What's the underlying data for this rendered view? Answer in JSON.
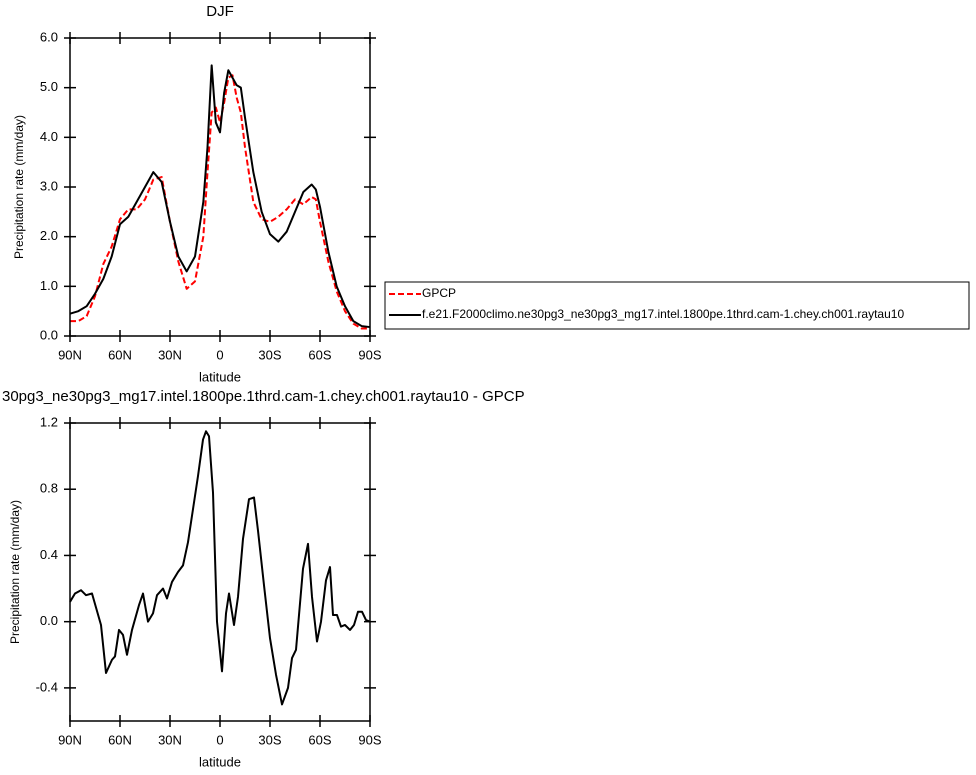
{
  "chart_data": [
    {
      "type": "line",
      "title": "DJF",
      "x_label": "latitude",
      "y_label": "Precipitation rate (mm/day)",
      "x": [
        90,
        85,
        80,
        75,
        70,
        65,
        60,
        55,
        50,
        45,
        40,
        35,
        30,
        25,
        20,
        15,
        10,
        7.5,
        5,
        2.5,
        0,
        -2.5,
        -5,
        -7.5,
        -10,
        -12.5,
        -15,
        -20,
        -25,
        -30,
        -35,
        -40,
        -45,
        -50,
        -55,
        -57.5,
        -60,
        -65,
        -70,
        -75,
        -80,
        -85,
        -90
      ],
      "series": [
        {
          "name": "GPCP",
          "color": "#ff0000",
          "dashed": true,
          "values": [
            0.3,
            0.3,
            0.4,
            0.8,
            1.45,
            1.8,
            2.35,
            2.55,
            2.55,
            2.75,
            3.15,
            3.2,
            2.3,
            1.5,
            0.95,
            1.1,
            2.0,
            3.3,
            4.5,
            4.6,
            4.3,
            4.7,
            5.2,
            5.25,
            4.8,
            4.5,
            3.8,
            2.7,
            2.35,
            2.3,
            2.4,
            2.55,
            2.75,
            2.65,
            2.8,
            2.75,
            2.3,
            1.5,
            0.9,
            0.5,
            0.25,
            0.15,
            0.15
          ]
        },
        {
          "name": "f.e21.F2000climo.ne30pg3_ne30pg3_mg17.intel.1800pe.1thrd.cam-1.chey.ch001.raytau10",
          "color": "#000000",
          "dashed": false,
          "values": [
            0.45,
            0.5,
            0.6,
            0.85,
            1.15,
            1.6,
            2.25,
            2.4,
            2.7,
            3.0,
            3.3,
            3.1,
            2.3,
            1.6,
            1.3,
            1.6,
            2.7,
            3.8,
            5.45,
            4.3,
            4.1,
            4.9,
            5.35,
            5.2,
            5.05,
            5.0,
            4.4,
            3.3,
            2.5,
            2.05,
            1.9,
            2.1,
            2.5,
            2.9,
            3.05,
            2.95,
            2.6,
            1.7,
            1.0,
            0.6,
            0.3,
            0.2,
            0.18
          ]
        }
      ],
      "xlim": [
        90,
        -90
      ],
      "xticks": [
        {
          "value": 90,
          "label": "90N"
        },
        {
          "value": 60,
          "label": "60N"
        },
        {
          "value": 30,
          "label": "30N"
        },
        0,
        {
          "value": -30,
          "label": "30S"
        },
        {
          "value": -60,
          "label": "60S"
        },
        {
          "value": -90,
          "label": "90S"
        }
      ],
      "ylim": [
        0,
        6
      ],
      "yticks": [
        {
          "value": 0,
          "label": "0.0"
        },
        {
          "value": 1,
          "label": "1.0"
        },
        {
          "value": 2,
          "label": "2.0"
        },
        {
          "value": 3,
          "label": "3.0"
        },
        {
          "value": 4,
          "label": "4.0"
        },
        {
          "value": 5,
          "label": "5.0"
        },
        {
          "value": 6,
          "label": "6.0"
        }
      ],
      "legend": "right",
      "grid": false
    },
    {
      "type": "line",
      "title": "30pg3_ne30pg3_mg17.intel.1800pe.1thrd.cam-1.chey.ch001.raytau10 - GPCP",
      "x_label": "latitude",
      "y_label": "Precipitation rate (mm/day)",
      "x": [
        90,
        87,
        83.4,
        80.4,
        76.8,
        71.4,
        68.4,
        64.8,
        63,
        60.6,
        58.2,
        55.8,
        52.8,
        48.6,
        46.2,
        43.2,
        40.2,
        37.8,
        34.2,
        31.8,
        28.8,
        25.2,
        22.2,
        19.2,
        16.2,
        13.2,
        10.2,
        8.4,
        6.6,
        4.2,
        1.8,
        -1.2,
        -3.6,
        -5.4,
        -8.4,
        -10.8,
        -13.8,
        -17.4,
        -20.4,
        -22.8,
        -26.4,
        -30,
        -33.6,
        -37.2,
        -40.8,
        -43.2,
        -45.6,
        -49.8,
        -52.8,
        -55.2,
        -58.2,
        -60.6,
        -63.6,
        -66,
        -67.8,
        -70.2,
        -72.6,
        -75,
        -78,
        -80.4,
        -82.8,
        -85.2,
        -87.6,
        -90
      ],
      "series": [
        {
          "color": "#000000",
          "dashed": false,
          "values": [
            0.12,
            0.17,
            0.19,
            0.16,
            0.17,
            -0.02,
            -0.31,
            -0.23,
            -0.21,
            -0.05,
            -0.08,
            -0.2,
            -0.05,
            0.1,
            0.17,
            0.0,
            0.05,
            0.16,
            0.2,
            0.14,
            0.24,
            0.3,
            0.34,
            0.48,
            0.68,
            0.88,
            1.1,
            1.15,
            1.12,
            0.78,
            0.0,
            -0.3,
            0.05,
            0.17,
            -0.02,
            0.15,
            0.5,
            0.74,
            0.75,
            0.55,
            0.22,
            -0.1,
            -0.32,
            -0.5,
            -0.4,
            -0.22,
            -0.17,
            0.32,
            0.47,
            0.15,
            -0.12,
            0.0,
            0.25,
            0.33,
            0.04,
            0.04,
            -0.03,
            -0.02,
            -0.05,
            -0.02,
            0.06,
            0.06,
            0.01,
            0.0
          ]
        }
      ],
      "xlim": [
        90,
        -90
      ],
      "xticks": [
        {
          "value": 90,
          "label": "90N"
        },
        {
          "value": 60,
          "label": "60N"
        },
        {
          "value": 30,
          "label": "30N"
        },
        0,
        {
          "value": -30,
          "label": "30S"
        },
        {
          "value": -60,
          "label": "60S"
        },
        {
          "value": -90,
          "label": "90S"
        }
      ],
      "ylim": [
        -0.6,
        1.2
      ],
      "yticks": [
        -0.4,
        {
          "value": 0,
          "label": "0.0"
        },
        0.4,
        0.8,
        1.2
      ],
      "grid": false
    }
  ]
}
